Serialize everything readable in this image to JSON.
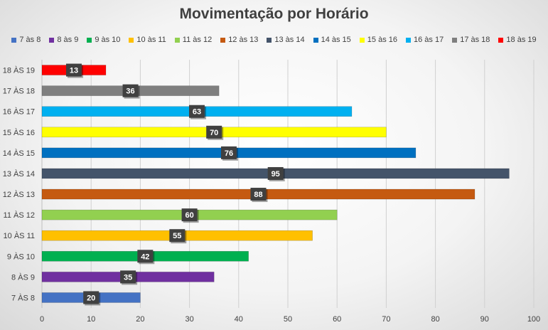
{
  "chart_data": {
    "type": "bar",
    "orientation": "horizontal",
    "title": "Movimentação por Horário",
    "categories": [
      "7 ÀS 8",
      "8 ÀS 9",
      "9 ÀS 10",
      "10 ÀS 11",
      "11 ÀS 12",
      "12 ÀS 13",
      "13 ÀS 14",
      "14 ÀS 15",
      "15 ÀS 16",
      "16 ÀS 17",
      "17 ÀS 18",
      "18 ÀS 19"
    ],
    "values": [
      20,
      35,
      42,
      55,
      60,
      88,
      95,
      76,
      70,
      63,
      36,
      13
    ],
    "colors": [
      "#4472c4",
      "#7030a0",
      "#00b050",
      "#ffc000",
      "#92d050",
      "#c55a11",
      "#44546a",
      "#0070c0",
      "#ffff00",
      "#00b0f0",
      "#7f7f7f",
      "#ff0000"
    ],
    "legend": {
      "position": "top",
      "entries": [
        "7 às 8",
        "8 às 9",
        "9 às 10",
        "10 às 11",
        "11 às 12",
        "12 às 13",
        "13 às 14",
        "14 às 15",
        "15 às 16",
        "16 às 17",
        "17 às 18",
        "18 às 19"
      ]
    },
    "x_ticks": [
      0,
      10,
      20,
      30,
      40,
      50,
      60,
      70,
      80,
      90,
      100
    ],
    "xlim": [
      0,
      100
    ],
    "grid": true,
    "data_labels": true,
    "xlabel": "",
    "ylabel": ""
  }
}
